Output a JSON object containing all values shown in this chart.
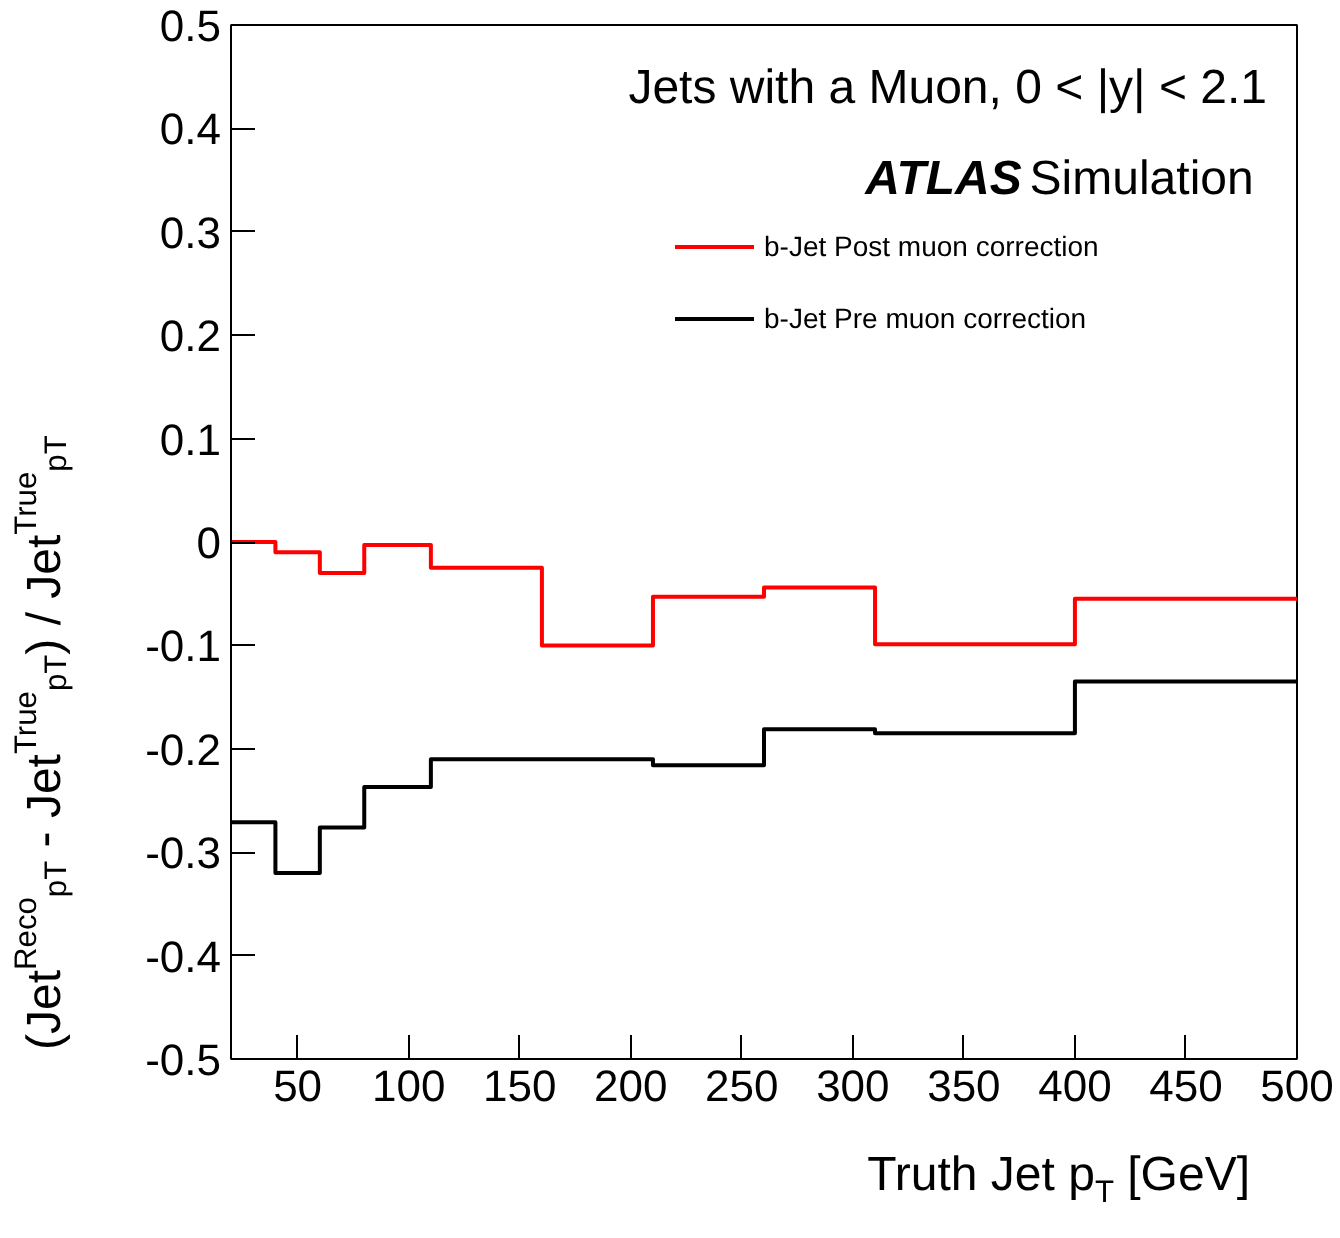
{
  "chart_data": {
    "type": "histogram",
    "xlabel": "Truth Jet p$_{T}$ [GeV]",
    "ylabel": "(Jet$^{Reco}$$_{pT}$ - Jet$^{True}$$_{pT}$) / Jet$^{True}$$_{pT}$",
    "annotations": [
      "Jets with a Muon, 0 < |y| < 2.1",
      "ATLAS Simulation"
    ],
    "bins": [
      20,
      40,
      60,
      80,
      110,
      160,
      210,
      260,
      310,
      400,
      500
    ],
    "series": [
      {
        "name": "b-Jet Post muon correction",
        "color": "#ff0000",
        "values": [
          0.0,
          -0.01,
          -0.03,
          -0.003,
          -0.025,
          -0.1,
          -0.053,
          -0.044,
          -0.099,
          -0.055
        ]
      },
      {
        "name": "b-Jet Pre muon correction",
        "color": "#000000",
        "values": [
          -0.271,
          -0.32,
          -0.276,
          -0.237,
          -0.21,
          -0.21,
          -0.216,
          -0.181,
          -0.185,
          -0.135
        ]
      }
    ],
    "xlim": [
      20,
      500
    ],
    "ylim": [
      -0.5,
      0.5
    ],
    "xticks": [
      50,
      100,
      150,
      200,
      250,
      300,
      350,
      400,
      450,
      500
    ],
    "yticks": [
      -0.5,
      -0.4,
      -0.3,
      -0.2,
      -0.1,
      0,
      0.1,
      0.2,
      0.3,
      0.4,
      0.5
    ],
    "legend": "top right",
    "grid": false
  }
}
